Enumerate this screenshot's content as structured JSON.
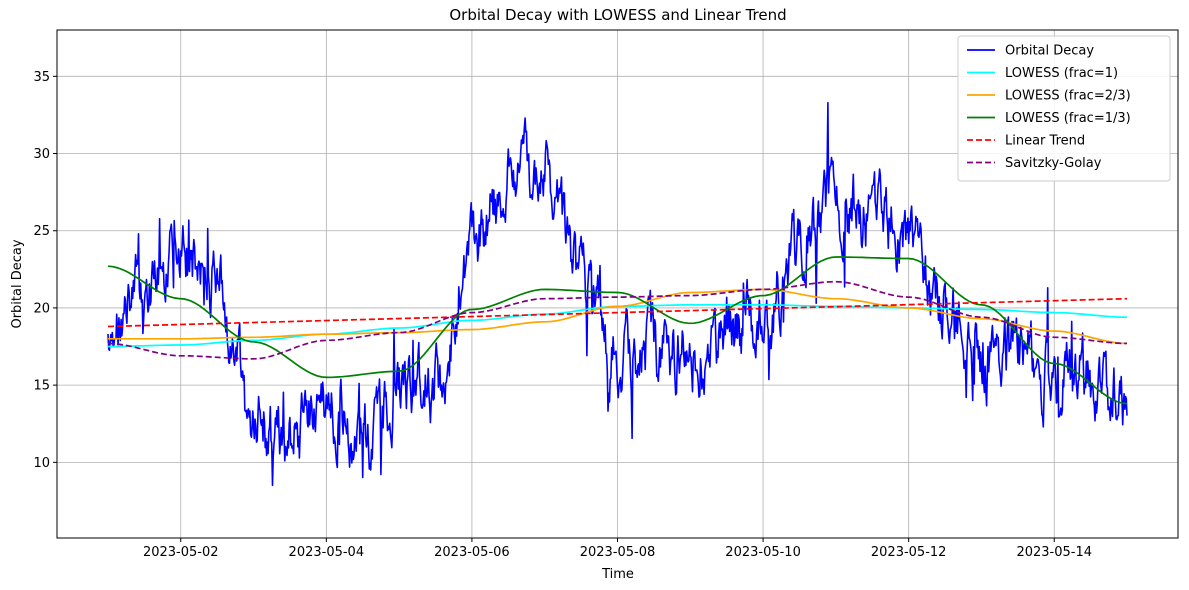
{
  "chart_data": {
    "type": "line",
    "title": "Orbital Decay with LOWESS and Linear Trend",
    "xlabel": "Time",
    "ylabel": "Orbital Decay",
    "x_range": [
      "2023-05-01",
      "2023-05-15"
    ],
    "xlim": [
      "2022-04-30T07:12",
      "2023-05-15T16:48"
    ],
    "ylim": [
      5.1,
      38.0
    ],
    "x_ticks": [
      "2023-05-02",
      "2023-05-04",
      "2023-05-06",
      "2023-05-08",
      "2023-05-10",
      "2023-05-12",
      "2023-05-14"
    ],
    "y_ticks": [
      10,
      15,
      20,
      25,
      30,
      35
    ],
    "grid": true,
    "legend_position": "top-right",
    "series": [
      {
        "name": "Orbital Decay",
        "color": "#0000ff",
        "style": "solid",
        "x": [
          "2023-05-01",
          "2023-05-01T12:00",
          "2023-05-02",
          "2023-05-02T12:00",
          "2023-05-03",
          "2023-05-03T12:00",
          "2023-05-04",
          "2023-05-04T12:00",
          "2023-05-05",
          "2023-05-05T12:00",
          "2023-05-06",
          "2023-05-06T12:00",
          "2023-05-07",
          "2023-05-07T12:00",
          "2023-05-08",
          "2023-05-08T12:00",
          "2023-05-09",
          "2023-05-09T12:00",
          "2023-05-10",
          "2023-05-10T12:00",
          "2023-05-11",
          "2023-05-11T12:00",
          "2023-05-12",
          "2023-05-12T12:00",
          "2023-05-13",
          "2023-05-13T12:00",
          "2023-05-14",
          "2023-05-14T12:00",
          "2023-05-15"
        ],
        "values": [
          17.5,
          21.0,
          23.5,
          21.5,
          13.0,
          11.0,
          14.0,
          11.5,
          14.5,
          15.5,
          24.0,
          28.0,
          29.0,
          22.0,
          17.0,
          17.5,
          17.0,
          18.0,
          20.0,
          24.0,
          27.0,
          26.0,
          24.5,
          20.0,
          16.5,
          17.0,
          15.0,
          15.5,
          13.5
        ]
      },
      {
        "name": "LOWESS (frac=1)",
        "color": "#00ffff",
        "style": "solid",
        "x": [
          "2023-05-01",
          "2023-05-02",
          "2023-05-03",
          "2023-05-04",
          "2023-05-05",
          "2023-05-06",
          "2023-05-07",
          "2023-05-08",
          "2023-05-09",
          "2023-05-10",
          "2023-05-11",
          "2023-05-12",
          "2023-05-13",
          "2023-05-14",
          "2023-05-15"
        ],
        "values": [
          17.5,
          17.6,
          17.9,
          18.3,
          18.7,
          19.2,
          19.6,
          20.1,
          20.2,
          20.2,
          20.1,
          20.0,
          19.9,
          19.7,
          19.4
        ]
      },
      {
        "name": "LOWESS (frac=2/3)",
        "color": "#ffa500",
        "style": "solid",
        "x": [
          "2023-05-01",
          "2023-05-02",
          "2023-05-03",
          "2023-05-04",
          "2023-05-05",
          "2023-05-06",
          "2023-05-07",
          "2023-05-08",
          "2023-05-09",
          "2023-05-10",
          "2023-05-11",
          "2023-05-12",
          "2023-05-13",
          "2023-05-14",
          "2023-05-15"
        ],
        "values": [
          18.0,
          18.0,
          18.1,
          18.3,
          18.4,
          18.6,
          19.1,
          20.1,
          21.0,
          21.2,
          20.6,
          20.0,
          19.3,
          18.5,
          17.7
        ]
      },
      {
        "name": "LOWESS (frac=1/3)",
        "color": "#008000",
        "style": "solid",
        "x": [
          "2023-05-01",
          "2023-05-02",
          "2023-05-03",
          "2023-05-04",
          "2023-05-05",
          "2023-05-06",
          "2023-05-07",
          "2023-05-08",
          "2023-05-09",
          "2023-05-10",
          "2023-05-11",
          "2023-05-12",
          "2023-05-13",
          "2023-05-14",
          "2023-05-15"
        ],
        "values": [
          22.7,
          20.6,
          17.8,
          15.5,
          15.9,
          19.9,
          21.2,
          21.0,
          19.0,
          20.8,
          23.3,
          23.2,
          20.2,
          16.4,
          13.8
        ]
      },
      {
        "name": "Linear Trend",
        "color": "#ff0000",
        "style": "dashed",
        "x": [
          "2023-05-01",
          "2023-05-15"
        ],
        "values": [
          18.8,
          20.6
        ]
      },
      {
        "name": "Savitzky-Golay",
        "color": "#800080",
        "style": "dashed",
        "x": [
          "2023-05-01",
          "2023-05-02",
          "2023-05-03",
          "2023-05-04",
          "2023-05-05",
          "2023-05-06",
          "2023-05-07",
          "2023-05-08",
          "2023-05-09",
          "2023-05-10",
          "2023-05-11",
          "2023-05-12",
          "2023-05-13",
          "2023-05-14",
          "2023-05-15"
        ],
        "values": [
          17.7,
          16.9,
          16.7,
          17.9,
          18.4,
          19.7,
          20.6,
          20.7,
          20.8,
          21.2,
          21.7,
          20.7,
          19.4,
          18.1,
          17.7
        ]
      }
    ]
  }
}
